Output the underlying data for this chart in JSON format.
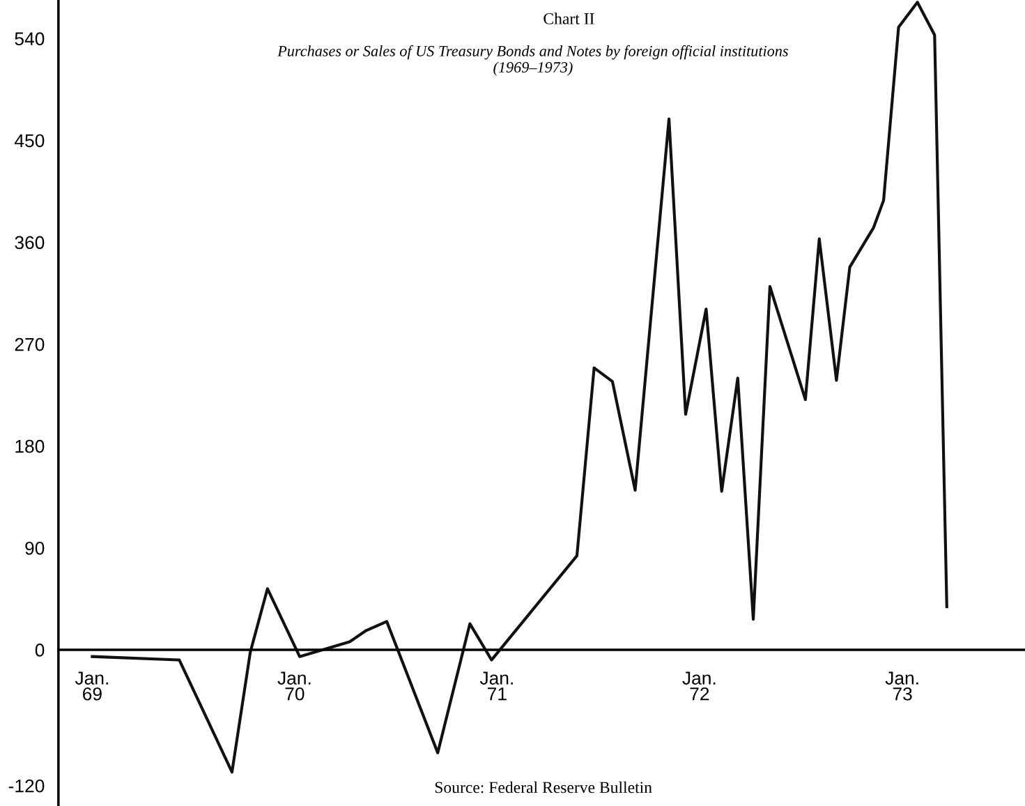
{
  "chart_data": {
    "type": "line",
    "title": "Chart II",
    "subtitle": "Purchases or Sales of US Treasury Bonds and Notes by foreign official institutions\n(1969–1973)",
    "annotations": [
      "Source: Federal Reserve Bulletin"
    ],
    "x": [
      "1969-01-01",
      "1969-06-07",
      "1969-09-10",
      "1969-10-13",
      "1969-11-13",
      "1970-01-10",
      "1970-04-10",
      "1970-05-10",
      "1970-06-16",
      "1970-09-16",
      "1970-11-13",
      "1970-12-22",
      "1971-05-25",
      "1971-06-25",
      "1971-07-28",
      "1971-09-07",
      "1971-11-07",
      "1971-12-07",
      "1972-01-13",
      "1972-02-10",
      "1972-03-10",
      "1972-04-07",
      "1972-05-07",
      "1972-07-10",
      "1972-08-04",
      "1972-09-04",
      "1972-09-28",
      "1972-11-10",
      "1972-11-28",
      "1972-12-25",
      "1973-01-28",
      "1973-02-28",
      "1973-03-22"
    ],
    "series": [
      {
        "color": "#111111",
        "values": [
          -6,
          -9,
          -108,
          -2,
          54,
          -6,
          7,
          17,
          25,
          -91,
          23,
          -9,
          83,
          249,
          237,
          141,
          469,
          208,
          301,
          140,
          240,
          27,
          321,
          221,
          363,
          238,
          338,
          373,
          397,
          550,
          572,
          543,
          38
        ]
      }
    ],
    "xlim": [
      "1968-11-01",
      "1973-08-10"
    ],
    "ylim": [
      -138,
      574
    ],
    "xticks": [
      {
        "value": "1969-01-01",
        "label": "Jan.\n69"
      },
      {
        "value": "1970-01-01",
        "label": "Jan.\n70"
      },
      {
        "value": "1971-01-01",
        "label": "Jan.\n71"
      },
      {
        "value": "1972-01-01",
        "label": "Jan.\n72"
      },
      {
        "value": "1973-01-01",
        "label": "Jan.\n73"
      }
    ],
    "yticks": [
      -120,
      0,
      90,
      180,
      270,
      360,
      450,
      540
    ],
    "marker": "none",
    "line_style": "solid"
  }
}
